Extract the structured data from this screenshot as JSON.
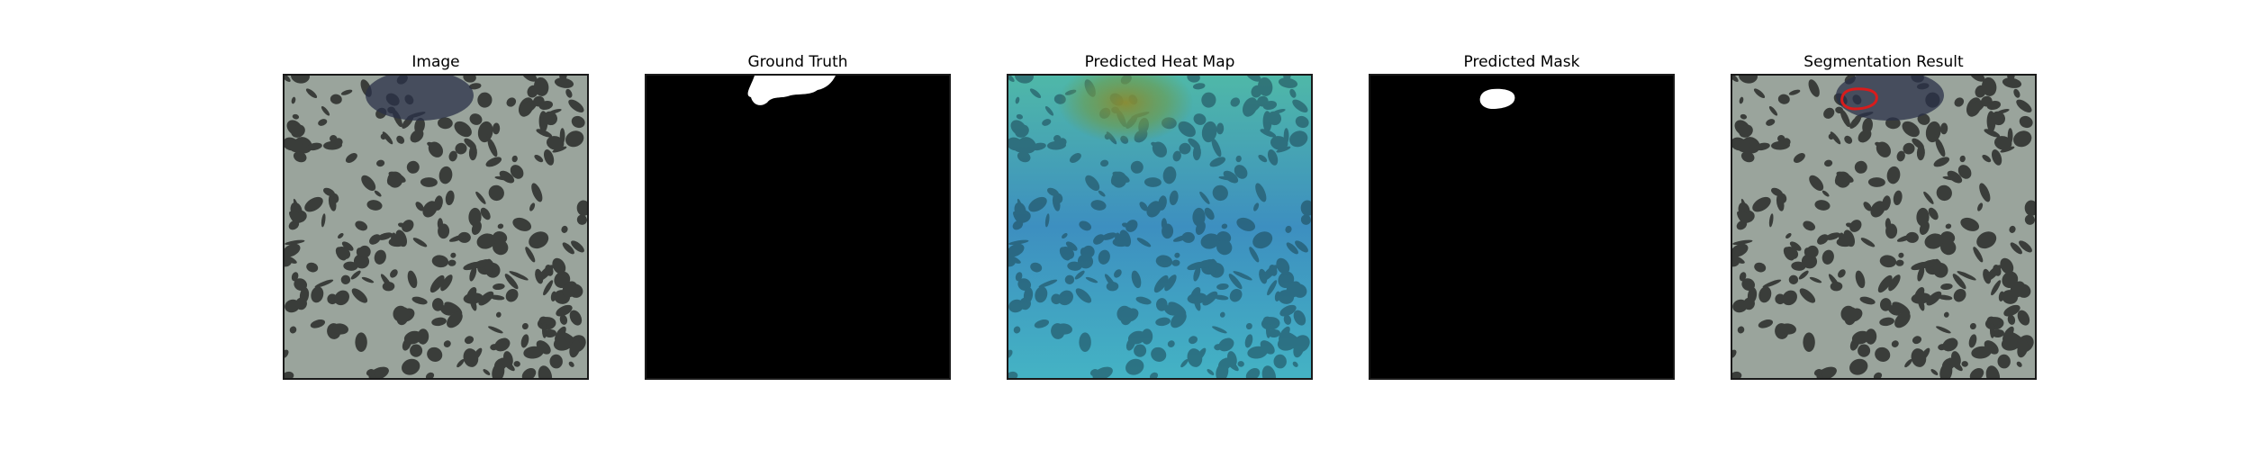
{
  "panels": [
    {
      "title": "Image"
    },
    {
      "title": "Ground Truth"
    },
    {
      "title": "Predicted Heat Map"
    },
    {
      "title": "Predicted Mask"
    },
    {
      "title": "Segmentation Result"
    }
  ],
  "colors": {
    "texture_background": "#9aa49c",
    "texture_blob": "#3a3d3a",
    "defect_region": "#2a3048",
    "mask_background": "#000000",
    "mask_foreground": "#ffffff",
    "heatmap_cool": "#3fa6c8",
    "heatmap_warm": "#8c8a30",
    "result_outline": "#d81c1c"
  }
}
